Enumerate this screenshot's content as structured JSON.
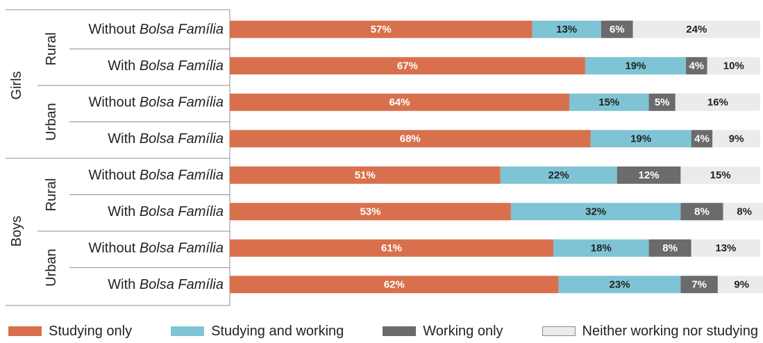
{
  "chart_data": {
    "type": "bar",
    "orientation": "horizontal",
    "stacked": true,
    "ylim": [
      0,
      100
    ],
    "grid": false,
    "legend_placement": "bottom",
    "categories": [
      {
        "gender": "Girls",
        "area": "Rural",
        "label_prefix": "Without ",
        "label_program": "Bolsa Família"
      },
      {
        "gender": "Girls",
        "area": "Rural",
        "label_prefix": "With ",
        "label_program": "Bolsa Família"
      },
      {
        "gender": "Girls",
        "area": "Urban",
        "label_prefix": "Without ",
        "label_program": "Bolsa Família"
      },
      {
        "gender": "Girls",
        "area": "Urban",
        "label_prefix": "With ",
        "label_program": "Bolsa Família"
      },
      {
        "gender": "Boys",
        "area": "Rural",
        "label_prefix": "Without ",
        "label_program": "Bolsa Família"
      },
      {
        "gender": "Boys",
        "area": "Rural",
        "label_prefix": "With ",
        "label_program": "Bolsa Família"
      },
      {
        "gender": "Boys",
        "area": "Urban",
        "label_prefix": "Without ",
        "label_program": "Bolsa Família"
      },
      {
        "gender": "Boys",
        "area": "Urban",
        "label_prefix": "With ",
        "label_program": "Bolsa Família"
      }
    ],
    "groups": [
      {
        "label": "Girls",
        "subgroups": [
          "Rural",
          "Urban"
        ]
      },
      {
        "label": "Boys",
        "subgroups": [
          "Rural",
          "Urban"
        ]
      }
    ],
    "series": [
      {
        "name": "Studying only",
        "color": "#d9704d",
        "label_color": "#ffffff",
        "values": [
          57,
          67,
          64,
          68,
          51,
          53,
          61,
          62
        ],
        "labels": [
          "57%",
          "67%",
          "64%",
          "68%",
          "51%",
          "53%",
          "61%",
          "62%"
        ]
      },
      {
        "name": "Studying and working",
        "color": "#7ec4d4",
        "label_color": "#222222",
        "values": [
          13,
          19,
          15,
          19,
          22,
          32,
          18,
          23
        ],
        "labels": [
          "13%",
          "19%",
          "15%",
          "19%",
          "22%",
          "32%",
          "18%",
          "23%"
        ]
      },
      {
        "name": "Working only",
        "color": "#6b6b6b",
        "label_color": "#ffffff",
        "values": [
          6,
          4,
          5,
          4,
          12,
          8,
          8,
          7
        ],
        "labels": [
          "6%",
          "4%",
          "5%",
          "4%",
          "12%",
          "8%",
          "8%",
          "7%"
        ]
      },
      {
        "name": "Neither working nor studying",
        "color": "#ebebeb",
        "label_color": "#222222",
        "values": [
          24,
          10,
          16,
          9,
          15,
          8,
          13,
          9
        ],
        "labels": [
          "24%",
          "10%",
          "16%",
          "9%",
          "15%",
          "8%",
          "13%",
          "9%"
        ]
      }
    ]
  }
}
